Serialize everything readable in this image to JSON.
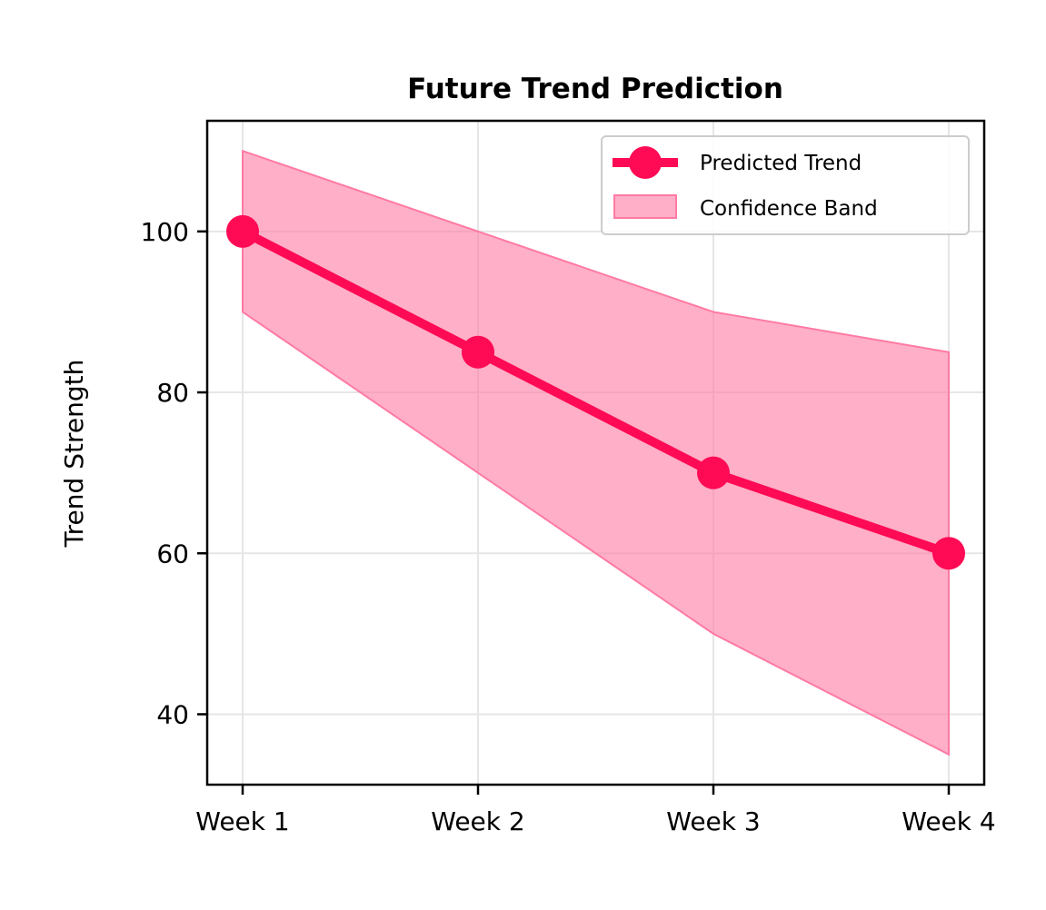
{
  "chart_data": {
    "type": "line",
    "title": "Future Trend Prediction",
    "xlabel": "",
    "ylabel": "Trend Strength",
    "categories": [
      "Week 1",
      "Week 2",
      "Week 3",
      "Week 4"
    ],
    "series": [
      {
        "name": "Predicted Trend",
        "values": [
          100,
          85,
          70,
          60
        ]
      }
    ],
    "band": {
      "name": "Confidence Band",
      "lower": [
        90,
        70,
        50,
        35
      ],
      "upper": [
        110,
        100,
        90,
        85
      ]
    },
    "ylim": [
      31.25,
      113.75
    ],
    "yticks": [
      40,
      60,
      80,
      100
    ],
    "grid": true,
    "legend": "top-right",
    "colors": {
      "line": "#ff0a54",
      "band_fill": "#ff7aa3",
      "band_edge": "#ff7aa3",
      "grid": "#e6e6e6",
      "axes": "#000000"
    }
  }
}
